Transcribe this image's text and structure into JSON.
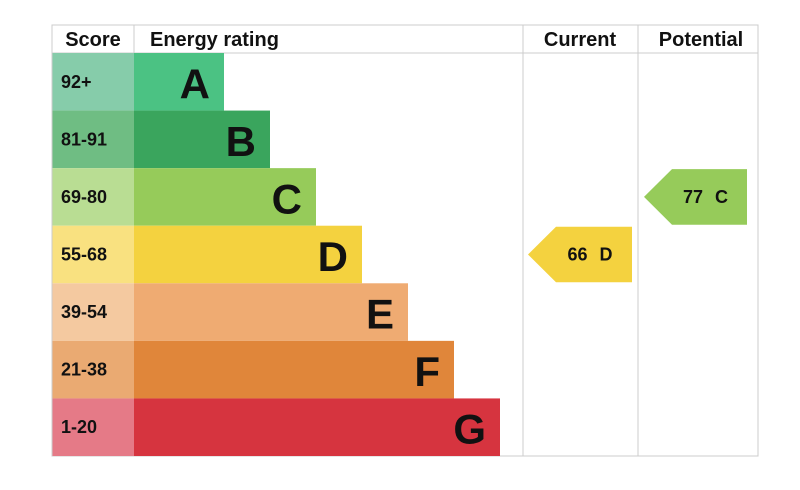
{
  "header": {
    "score": "Score",
    "rating": "Energy rating",
    "current": "Current",
    "potential": "Potential"
  },
  "bands": [
    {
      "score": "92+",
      "letter": "A",
      "color": "#4bc283",
      "score_color": "#86ccaa"
    },
    {
      "score": "81-91",
      "letter": "B",
      "color": "#3aa55d",
      "score_color": "#6fbd83"
    },
    {
      "score": "69-80",
      "letter": "C",
      "color": "#96cb5a",
      "score_color": "#b9dd93"
    },
    {
      "score": "55-68",
      "letter": "D",
      "color": "#f4d23f",
      "score_color": "#f9e180"
    },
    {
      "score": "39-54",
      "letter": "E",
      "color": "#efab72",
      "score_color": "#f4c9a0"
    },
    {
      "score": "21-38",
      "letter": "F",
      "color": "#e0863a",
      "score_color": "#eaaa72"
    },
    {
      "score": "1-20",
      "letter": "G",
      "color": "#d6343f",
      "score_color": "#e57a87"
    }
  ],
  "current": {
    "score": 66,
    "letter": "D"
  },
  "potential": {
    "score": 77,
    "letter": "C"
  }
}
